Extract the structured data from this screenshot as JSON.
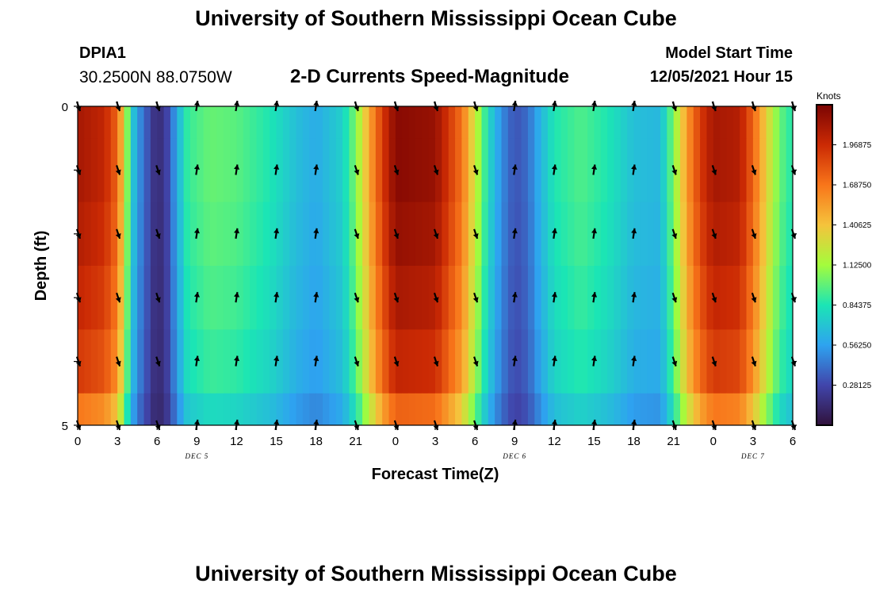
{
  "header": {
    "title": "University of Southern Mississippi Ocean Cube",
    "station": "DPIA1",
    "coords": "30.2500N  88.0750W",
    "subtitle": "2-D Currents Speed-Magnitude",
    "model_start_label": "Model Start Time",
    "model_start_value": "12/05/2021 Hour 15"
  },
  "footer": {
    "title": "University of Southern Mississippi Ocean Cube"
  },
  "chart_data": {
    "type": "heatmap",
    "title": "2-D Currents Speed-Magnitude",
    "xlabel": "Forecast Time(Z)",
    "ylabel": "Depth (ft)",
    "x_hours": [
      0,
      3,
      6,
      9,
      12,
      15,
      18,
      21,
      24,
      27,
      30,
      33,
      36,
      39,
      42,
      45,
      48,
      51,
      54
    ],
    "x_tick_labels": [
      "0",
      "3",
      "6",
      "9",
      "12",
      "15",
      "18",
      "21",
      "0",
      "3",
      "6",
      "9",
      "12",
      "15",
      "18",
      "21",
      "0",
      "3",
      "6"
    ],
    "date_labels": [
      {
        "hour": 9,
        "text": "DEC 5"
      },
      {
        "hour": 33,
        "text": "DEC 6"
      },
      {
        "hour": 51,
        "text": "DEC 7"
      }
    ],
    "y_range": [
      0,
      5
    ],
    "y_tick_labels": [
      "0",
      "5"
    ],
    "depth_layers": 5,
    "colorbar": {
      "label": "Knots",
      "range": [
        0.0,
        2.25
      ],
      "ticks": [
        0.28125,
        0.5625,
        0.84375,
        1.125,
        1.40625,
        1.6875,
        1.96875
      ],
      "tick_labels": [
        "0.28125",
        "0.56250",
        "0.84375",
        "1.12500",
        "1.40625",
        "1.68750",
        "1.96875"
      ]
    },
    "surface_speed_knots": [
      {
        "hour": 0,
        "speed": 2.1
      },
      {
        "hour": 2,
        "speed": 2.0
      },
      {
        "hour": 3,
        "speed": 1.75
      },
      {
        "hour": 3.5,
        "speed": 1.3
      },
      {
        "hour": 4,
        "speed": 0.8
      },
      {
        "hour": 4.5,
        "speed": 0.55
      },
      {
        "hour": 5.2,
        "speed": 0.35
      },
      {
        "hour": 6,
        "speed": 0.12
      },
      {
        "hour": 6.8,
        "speed": 0.28
      },
      {
        "hour": 7.5,
        "speed": 0.6
      },
      {
        "hour": 8.3,
        "speed": 0.9
      },
      {
        "hour": 10,
        "speed": 1.0
      },
      {
        "hour": 12,
        "speed": 0.97
      },
      {
        "hour": 14.5,
        "speed": 0.85
      },
      {
        "hour": 16.5,
        "speed": 0.68
      },
      {
        "hour": 18,
        "speed": 0.6
      },
      {
        "hour": 20,
        "speed": 0.75
      },
      {
        "hour": 21,
        "speed": 1.05
      },
      {
        "hour": 22,
        "speed": 1.5
      },
      {
        "hour": 23,
        "speed": 1.9
      },
      {
        "hour": 24,
        "speed": 2.2
      },
      {
        "hour": 27,
        "speed": 2.15
      },
      {
        "hour": 29,
        "speed": 1.7
      },
      {
        "hour": 30,
        "speed": 1.25
      },
      {
        "hour": 31,
        "speed": 0.8
      },
      {
        "hour": 32,
        "speed": 0.5
      },
      {
        "hour": 33,
        "speed": 0.32
      },
      {
        "hour": 34,
        "speed": 0.4
      },
      {
        "hour": 35,
        "speed": 0.65
      },
      {
        "hour": 36,
        "speed": 0.85
      },
      {
        "hour": 38,
        "speed": 0.95
      },
      {
        "hour": 40,
        "speed": 0.85
      },
      {
        "hour": 42,
        "speed": 0.68
      },
      {
        "hour": 44,
        "speed": 0.65
      },
      {
        "hour": 45,
        "speed": 1.05
      },
      {
        "hour": 46,
        "speed": 1.55
      },
      {
        "hour": 47,
        "speed": 1.9
      },
      {
        "hour": 48,
        "speed": 2.1
      },
      {
        "hour": 50,
        "speed": 2.05
      },
      {
        "hour": 51,
        "speed": 1.75
      },
      {
        "hour": 52,
        "speed": 1.35
      },
      {
        "hour": 53,
        "speed": 1.0
      },
      {
        "hour": 54,
        "speed": 0.85
      }
    ],
    "depth_factor": [
      1.0,
      1.0,
      0.98,
      0.95,
      0.91,
      0.8
    ],
    "arrow_hours": [
      0,
      3,
      6,
      9,
      12,
      15,
      18,
      21,
      24,
      27,
      30,
      33,
      36,
      39,
      42,
      45,
      48,
      51,
      54
    ],
    "arrow_depths": [
      0,
      1,
      2,
      3,
      4,
      5
    ],
    "arrow_directions": [
      "down",
      "down",
      "down",
      "up",
      "up",
      "up",
      "up",
      "down",
      "down",
      "down",
      "down",
      "up",
      "up",
      "up",
      "up",
      "down",
      "down",
      "down",
      "down"
    ]
  }
}
